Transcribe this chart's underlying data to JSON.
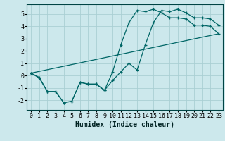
{
  "title": "",
  "xlabel": "Humidex (Indice chaleur)",
  "bg_color": "#cce8ec",
  "line_color": "#006666",
  "grid_color": "#aacfd4",
  "series1_x": [
    0,
    1,
    2,
    3,
    4,
    5,
    6,
    7,
    8,
    9,
    10,
    11,
    12,
    13,
    14,
    15,
    16,
    17,
    18,
    19,
    20,
    21,
    22,
    23
  ],
  "series1_y": [
    0.2,
    -0.2,
    -1.3,
    -1.3,
    -2.2,
    -2.1,
    -0.55,
    -0.7,
    -0.7,
    -1.2,
    0.3,
    2.5,
    4.3,
    5.3,
    5.2,
    5.4,
    5.1,
    4.7,
    4.7,
    4.6,
    4.1,
    4.1,
    4.0,
    3.4
  ],
  "series2_x": [
    0,
    1,
    2,
    3,
    4,
    5,
    6,
    7,
    8,
    9,
    10,
    11,
    12,
    13,
    14,
    15,
    16,
    17,
    18,
    19,
    20,
    21,
    22,
    23
  ],
  "series2_y": [
    0.2,
    -0.15,
    -1.3,
    -1.3,
    -2.2,
    -2.1,
    -0.55,
    -0.7,
    -0.7,
    -1.2,
    -0.4,
    0.3,
    1.0,
    0.45,
    2.5,
    4.3,
    5.3,
    5.2,
    5.4,
    5.1,
    4.7,
    4.7,
    4.6,
    4.1
  ],
  "series3_x": [
    0,
    23
  ],
  "series3_y": [
    0.2,
    3.4
  ],
  "xlim": [
    -0.5,
    23.5
  ],
  "ylim": [
    -2.8,
    5.8
  ],
  "yticks": [
    -2,
    -1,
    0,
    1,
    2,
    3,
    4,
    5
  ],
  "xticks": [
    0,
    1,
    2,
    3,
    4,
    5,
    6,
    7,
    8,
    9,
    10,
    11,
    12,
    13,
    14,
    15,
    16,
    17,
    18,
    19,
    20,
    21,
    22,
    23
  ],
  "xlabel_fontsize": 7,
  "tick_fontsize": 6,
  "lw": 0.9,
  "marker_size": 3
}
